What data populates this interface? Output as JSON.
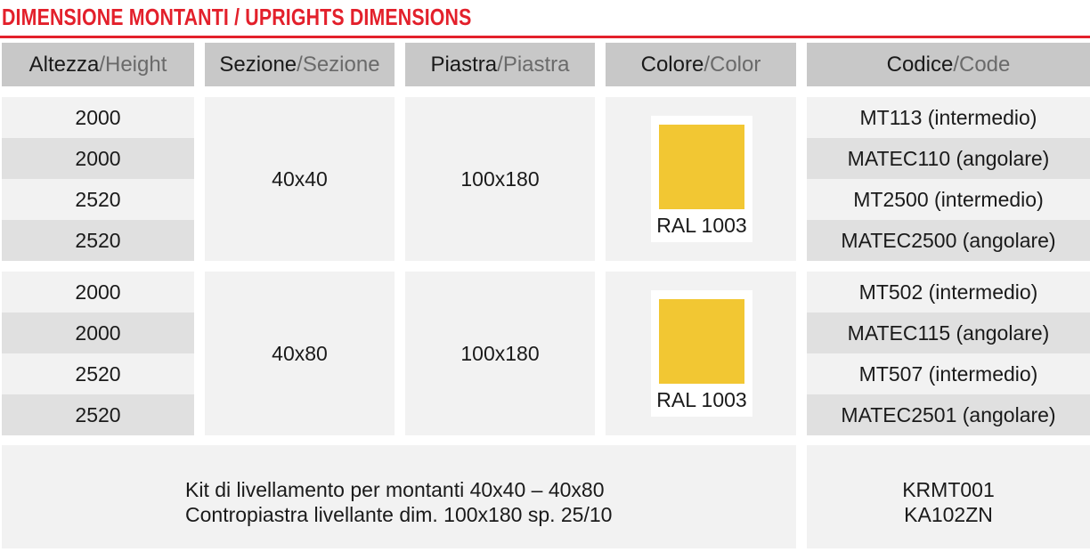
{
  "title": "DIMENSIONE MONTANTI / UPRIGHTS DIMENSIONS",
  "headers": [
    {
      "it": "Altezza",
      "sep": " / ",
      "en": "Height"
    },
    {
      "it": "Sezione",
      "sep": " / ",
      "en": "Sezione"
    },
    {
      "it": "Piastra",
      "sep": " / ",
      "en": "Piastra"
    },
    {
      "it": "Colore",
      "sep": " / ",
      "en": "Color"
    },
    {
      "it": "Codice",
      "sep": " / ",
      "en": "Code"
    }
  ],
  "groups": [
    {
      "heights": [
        "2000",
        "2000",
        "2520",
        "2520"
      ],
      "section": "40x40",
      "plate": "100x180",
      "color_label": "RAL 1003",
      "swatch_color": "#f2c733",
      "codes": [
        "MT113 (intermedio)",
        "MATEC110 (angolare)",
        "MT2500 (intermedio)",
        "MATEC2500 (angolare)"
      ]
    },
    {
      "heights": [
        "2000",
        "2000",
        "2520",
        "2520"
      ],
      "section": "40x80",
      "plate": "100x180",
      "color_label": "RAL 1003",
      "swatch_color": "#f2c733",
      "codes": [
        "MT502 (intermedio)",
        "MATEC115 (angolare)",
        "MT507 (intermedio)",
        "MATEC2501 (angolare)"
      ]
    }
  ],
  "kit": {
    "lines": [
      "Kit di livellamento per montanti 40x40 – 40x80",
      "Contropiastra livellante dim. 100x180 sp. 25/10"
    ],
    "codes": [
      "KRMT001",
      "KA102ZN"
    ]
  },
  "colors": {
    "accent": "#e3202b",
    "header_bg": "#c8c8c8",
    "row_light": "#f2f2f2",
    "row_dark": "#e0e0e0",
    "ral_1003": "#f2c733"
  }
}
